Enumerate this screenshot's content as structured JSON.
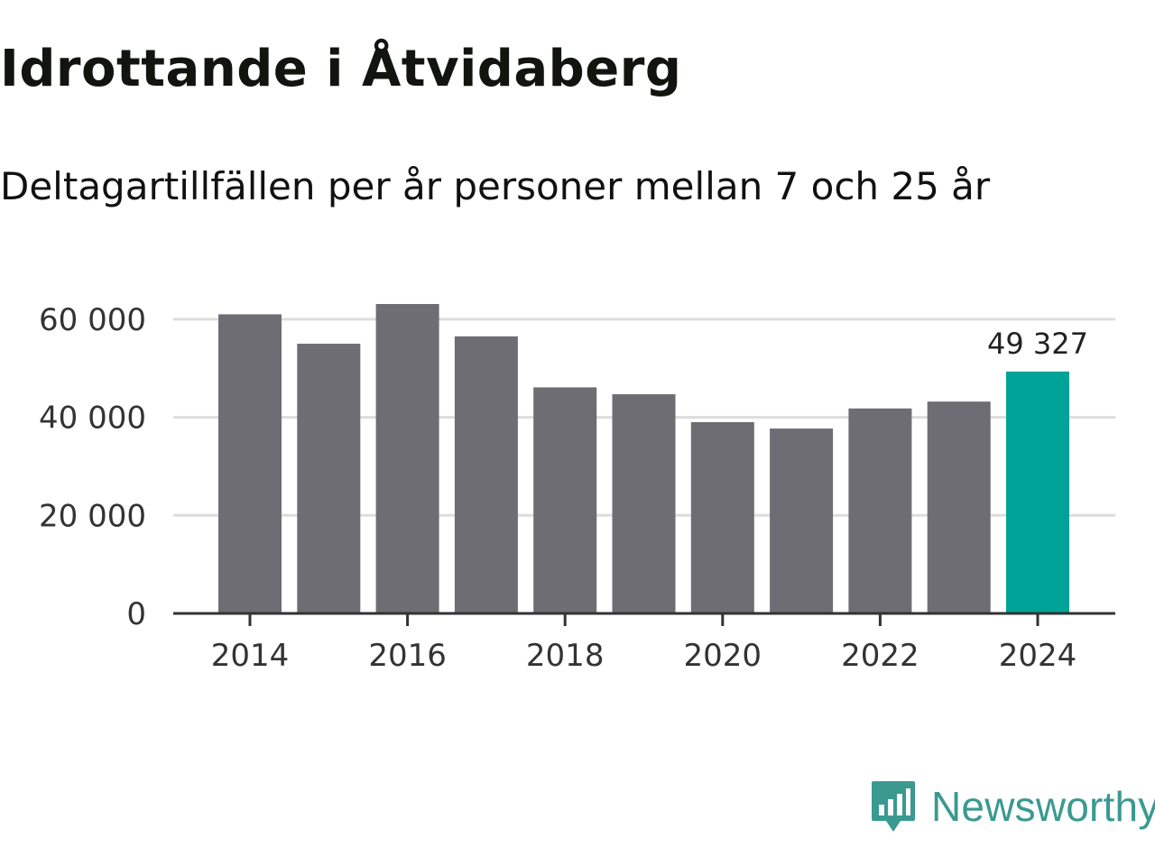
{
  "title": "Idrottande i Åtvidaberg",
  "subtitle": "Deltagartillfällen per år personer mellan 7 och 25 år",
  "brand": {
    "name": "Newsworthy",
    "icon": "newsworthy-logo-icon",
    "color": "#3a9a90"
  },
  "colors": {
    "bar": "#6e6d73",
    "highlight": "#00a398",
    "grid": "#dddddd",
    "axis": "#333333"
  },
  "chart_data": {
    "type": "bar",
    "title": "Idrottande i Åtvidaberg",
    "subtitle": "Deltagartillfällen per år personer mellan 7 och 25 år",
    "xlabel": "",
    "ylabel": "",
    "categories": [
      "2014",
      "2015",
      "2016",
      "2017",
      "2018",
      "2019",
      "2020",
      "2021",
      "2022",
      "2023",
      "2024"
    ],
    "values": [
      61000,
      55000,
      63100,
      56500,
      46100,
      44700,
      39000,
      37700,
      41800,
      43200,
      49327
    ],
    "highlight_index": 10,
    "highlight_label": "49 327",
    "ylim": [
      0,
      63100
    ],
    "yticks": [
      0,
      20000,
      40000,
      60000
    ],
    "ytick_labels": [
      "0",
      "20 000",
      "40 000",
      "60 000"
    ],
    "xticks": [
      "2014",
      "2016",
      "2018",
      "2020",
      "2022",
      "2024"
    ],
    "grid": true
  }
}
